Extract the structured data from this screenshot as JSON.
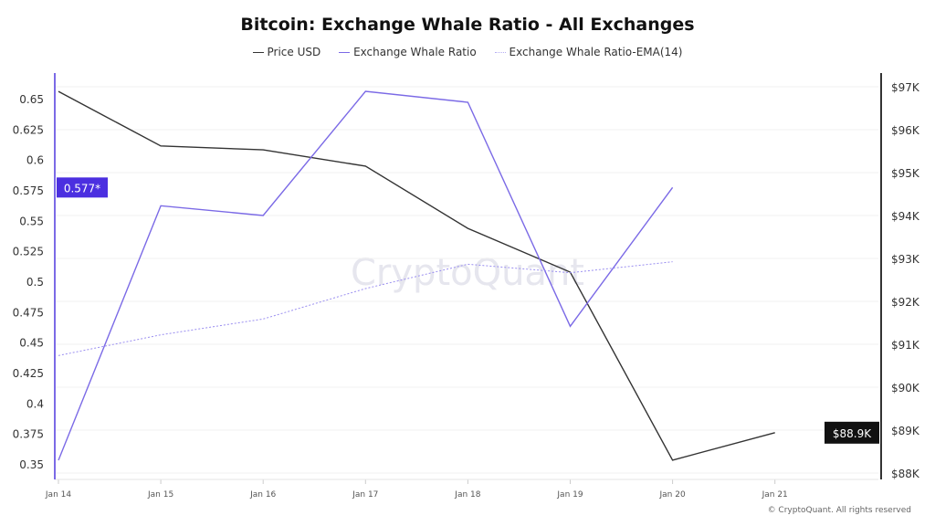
{
  "chart_data": {
    "type": "line",
    "title": "Bitcoin: Exchange Whale Ratio - All Exchanges",
    "categories": [
      "Jan 14",
      "Jan 15",
      "Jan 16",
      "Jan 17",
      "Jan 18",
      "Jan 19",
      "Jan 20",
      "Jan 21"
    ],
    "series": [
      {
        "name": "Price USD",
        "axis": "right",
        "color": "#333333",
        "values": [
          96890,
          95620,
          95530,
          95150,
          93700,
          92680,
          88300,
          88940
        ]
      },
      {
        "name": "Exchange Whale Ratio",
        "axis": "left",
        "color": "#7b6ae6",
        "values": [
          0.353,
          0.562,
          0.554,
          0.656,
          0.647,
          0.463,
          0.577,
          null
        ]
      },
      {
        "name": "Exchange Whale Ratio-EMA(14)",
        "axis": "left",
        "color": "#9a8ef0",
        "dashed": true,
        "values": [
          0.439,
          0.456,
          0.469,
          0.494,
          0.514,
          0.507,
          0.516,
          null
        ]
      }
    ],
    "left_axis": {
      "ylim": [
        0.35,
        0.65
      ],
      "ticks": [
        "0.35",
        "0.375",
        "0.4",
        "0.425",
        "0.45",
        "0.475",
        "0.5",
        "0.525",
        "0.55",
        "0.575",
        "0.6",
        "0.625",
        "0.65"
      ],
      "color": "#7b6ae6"
    },
    "right_axis": {
      "ylim": [
        88000,
        97000
      ],
      "ticks": [
        "$88K",
        "$89K",
        "$90K",
        "$91K",
        "$92K",
        "$93K",
        "$94K",
        "$95K",
        "$96K",
        "$97K"
      ]
    },
    "current_labels": {
      "left": "0.577*",
      "right": "$88.9K"
    },
    "grid": true,
    "legend": "top-center",
    "watermark": "CryptoQuant"
  },
  "footer": "© CryptoQuant. All rights reserved"
}
